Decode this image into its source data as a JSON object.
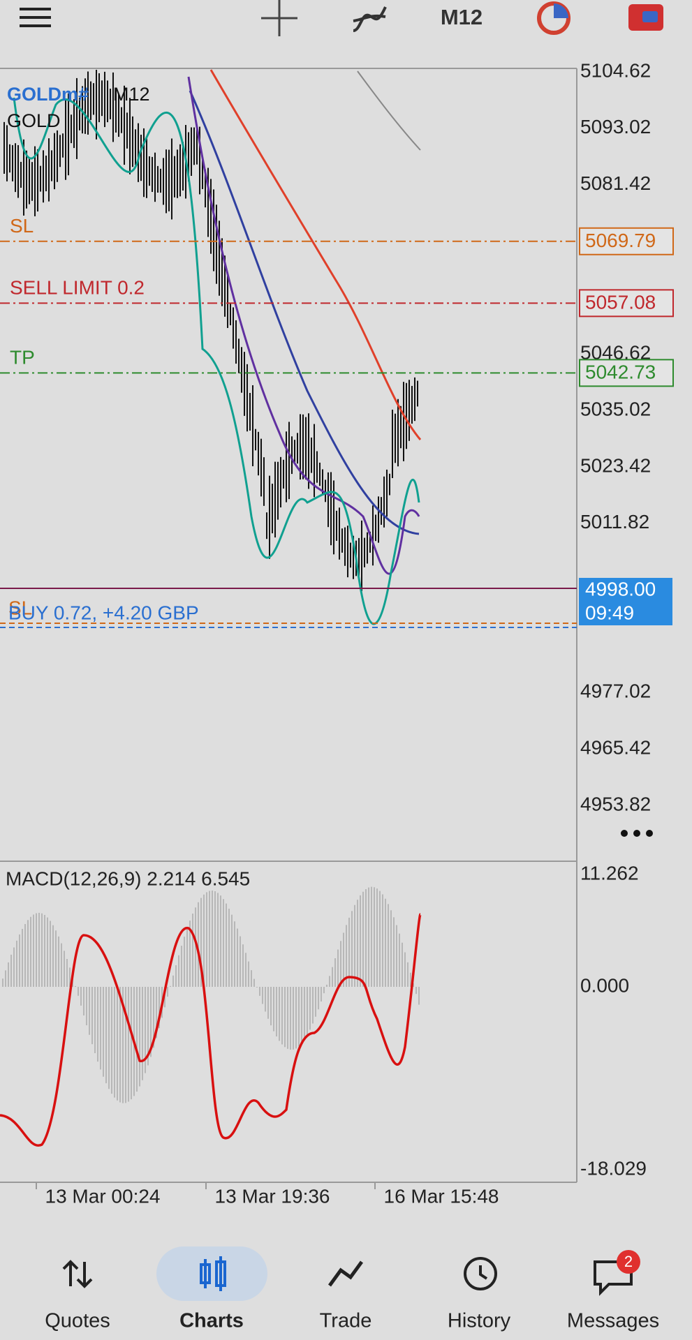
{
  "toolbar": {
    "timeframe": "M12"
  },
  "chart": {
    "symbol": "GOLDm#",
    "timeframe": "M12",
    "description": "GOLD",
    "price_ticks": [
      5104.62,
      5093.02,
      5081.42,
      5046.62,
      5035.02,
      5023.42,
      5011.82,
      4977.02,
      4965.42,
      4953.82
    ],
    "orders": [
      {
        "label": "SL",
        "price": 5069.79
      },
      {
        "label": "SELL LIMIT 0.2",
        "price": 5057.08
      },
      {
        "label": "TP",
        "price": 5042.73
      }
    ],
    "position": {
      "stop_label": "SL",
      "label": "BUY 0.72, +4.20 GBP"
    },
    "current_price": "4998.00",
    "countdown": "09:49"
  },
  "macd": {
    "label": "MACD(12,26,9) 2.214 6.545",
    "ticks": [
      "11.262",
      "0.000",
      "-18.029"
    ]
  },
  "time_axis": [
    "13 Mar 00:24",
    "13 Mar 19:36",
    "16 Mar 15:48"
  ],
  "nav": [
    {
      "label": "Quotes"
    },
    {
      "label": "Charts"
    },
    {
      "label": "Trade"
    },
    {
      "label": "History"
    },
    {
      "label": "Messages",
      "badge": "2"
    }
  ]
}
